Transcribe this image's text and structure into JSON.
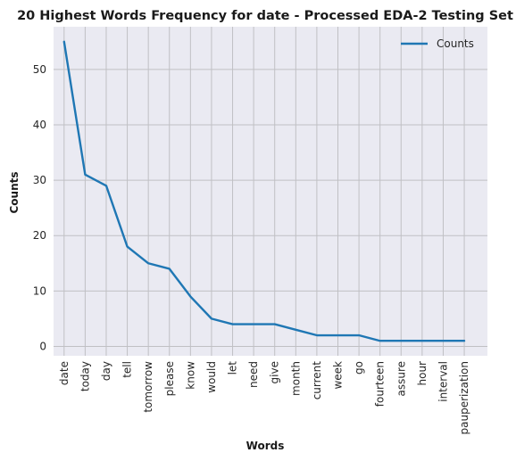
{
  "chart_data": {
    "type": "line",
    "title": "20 Highest Words Frequency for date - Processed EDA-2 Testing Set",
    "xlabel": "Words",
    "ylabel": "Counts",
    "categories": [
      "date",
      "today",
      "day",
      "tell",
      "tomorrow",
      "please",
      "know",
      "would",
      "let",
      "need",
      "give",
      "month",
      "current",
      "week",
      "go",
      "fourteen",
      "assure",
      "hour",
      "interval",
      "pauperization"
    ],
    "series": [
      {
        "name": "Counts",
        "values": [
          55,
          31,
          29,
          18,
          15,
          14,
          9,
          5,
          4,
          4,
          4,
          3,
          2,
          2,
          2,
          1,
          1,
          1,
          1,
          1
        ]
      }
    ],
    "ylim": [
      -1.7,
      57.7
    ],
    "yticks": [
      0,
      10,
      20,
      30,
      40,
      50
    ],
    "grid": true,
    "legend_position": "top-right",
    "line_color": "#1f77b4",
    "plot_background": "#eaeaf2",
    "grid_color": "#c0c0c4"
  }
}
